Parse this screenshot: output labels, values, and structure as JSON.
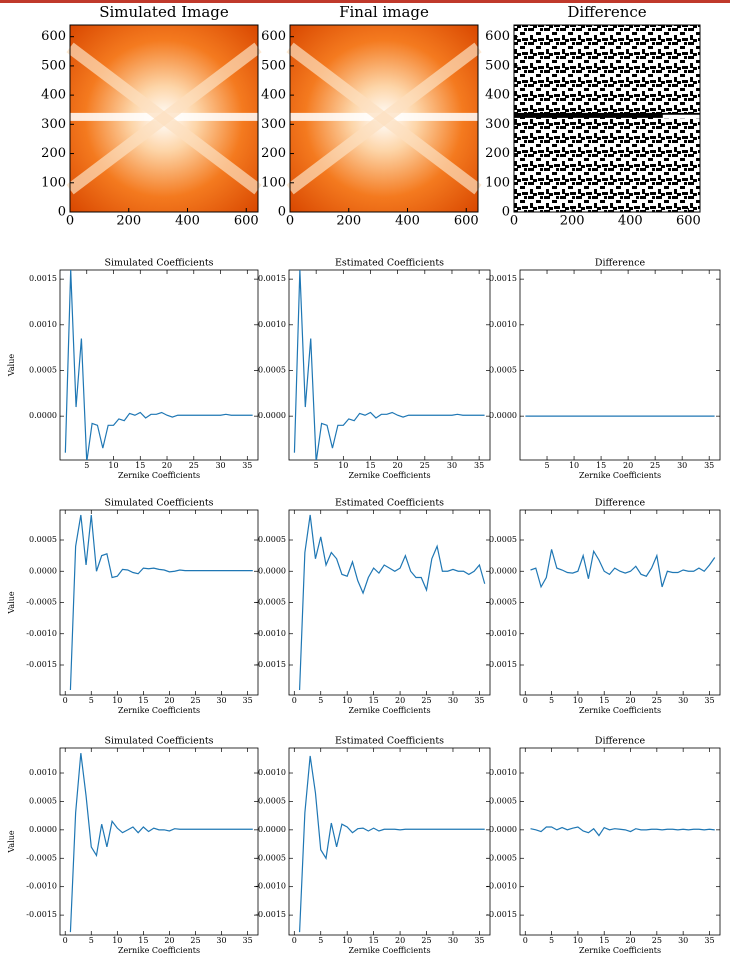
{
  "chart_data": [
    {
      "type": "image",
      "title": "Simulated Image",
      "colormap": "orange",
      "xlim": [
        0,
        640
      ],
      "ylim": [
        0,
        640
      ],
      "xticks": [
        0,
        200,
        400,
        600
      ],
      "yticks": [
        0,
        100,
        200,
        300,
        400,
        500,
        600
      ]
    },
    {
      "type": "image",
      "title": "Final image",
      "colormap": "orange",
      "xlim": [
        0,
        640
      ],
      "ylim": [
        0,
        640
      ],
      "xticks": [
        0,
        200,
        400,
        600
      ],
      "yticks": [
        0,
        100,
        200,
        300,
        400,
        500,
        600
      ]
    },
    {
      "type": "image",
      "title": "Difference",
      "colormap": "binary",
      "xlim": [
        0,
        640
      ],
      "ylim": [
        0,
        640
      ],
      "xticks": [
        0,
        200,
        400,
        600
      ],
      "yticks": [
        0,
        100,
        200,
        300,
        400,
        500,
        600
      ]
    },
    {
      "type": "line",
      "title": "Simulated Coefficients",
      "x_label": "Zernike Coefficients",
      "y_label": "Value",
      "x": [
        1,
        2,
        3,
        4,
        5,
        6,
        7,
        8,
        9,
        10,
        11,
        12,
        13,
        14,
        15,
        16,
        17,
        18,
        19,
        20,
        21,
        22,
        23,
        24,
        25,
        26,
        27,
        28,
        29,
        30,
        31,
        32,
        33,
        34,
        35,
        36
      ],
      "series": [
        {
          "color": "#1f77b4",
          "values": [
            -0.0004,
            0.0016,
            0.0001,
            0.00085,
            -0.0005,
            -8e-05,
            -0.0001,
            -0.00035,
            -0.0001,
            -0.0001,
            -3e-05,
            -5e-05,
            3e-05,
            1e-05,
            4e-05,
            -2e-05,
            2e-05,
            2e-05,
            4e-05,
            1e-05,
            -1e-05,
            1e-05,
            1e-05,
            1e-05,
            1e-05,
            1e-05,
            1e-05,
            1e-05,
            1e-05,
            1e-05,
            2e-05,
            1e-05,
            1e-05,
            1e-05,
            1e-05,
            1e-05
          ]
        }
      ],
      "xlim": [
        0,
        37
      ],
      "ylim": [
        -0.00048,
        0.0016
      ],
      "xticks": [
        5,
        10,
        15,
        20,
        25,
        30,
        35
      ],
      "yticks": [
        {
          "value": 0,
          "label": "0.0000"
        },
        {
          "value": 0.0005,
          "label": "0.0005"
        },
        {
          "value": 0.001,
          "label": "0.0010"
        },
        {
          "value": 0.0015,
          "label": "0.0015"
        }
      ]
    },
    {
      "type": "line",
      "title": "Estimated Coefficients",
      "x_label": "Zernike Coefficients",
      "x": [
        1,
        2,
        3,
        4,
        5,
        6,
        7,
        8,
        9,
        10,
        11,
        12,
        13,
        14,
        15,
        16,
        17,
        18,
        19,
        20,
        21,
        22,
        23,
        24,
        25,
        26,
        27,
        28,
        29,
        30,
        31,
        32,
        33,
        34,
        35,
        36
      ],
      "series": [
        {
          "color": "#1f77b4",
          "values": [
            -0.0004,
            0.0016,
            0.0001,
            0.00085,
            -0.0005,
            -8e-05,
            -0.0001,
            -0.00035,
            -0.0001,
            -0.0001,
            -3e-05,
            -5e-05,
            3e-05,
            1e-05,
            4e-05,
            -2e-05,
            2e-05,
            2e-05,
            4e-05,
            1e-05,
            -1e-05,
            1e-05,
            1e-05,
            1e-05,
            1e-05,
            1e-05,
            1e-05,
            1e-05,
            1e-05,
            1e-05,
            2e-05,
            1e-05,
            1e-05,
            1e-05,
            1e-05,
            1e-05
          ]
        }
      ],
      "xlim": [
        0,
        37
      ],
      "ylim": [
        -0.00048,
        0.0016
      ],
      "xticks": [
        5,
        10,
        15,
        20,
        25,
        30,
        35
      ],
      "yticks": [
        {
          "value": 0,
          "label": "0.0000"
        },
        {
          "value": 0.0005,
          "label": "0.0005"
        },
        {
          "value": 0.001,
          "label": "0.0010"
        },
        {
          "value": 0.0015,
          "label": "0.0015"
        }
      ]
    },
    {
      "type": "line",
      "title": "Difference",
      "x_label": "Zernike Coefficients",
      "x": [
        1,
        2,
        3,
        4,
        5,
        6,
        7,
        8,
        9,
        10,
        11,
        12,
        13,
        14,
        15,
        16,
        17,
        18,
        19,
        20,
        21,
        22,
        23,
        24,
        25,
        26,
        27,
        28,
        29,
        30,
        31,
        32,
        33,
        34,
        35,
        36
      ],
      "series": [
        {
          "color": "#1f77b4",
          "values": [
            0,
            0,
            0,
            0,
            0,
            0,
            0,
            0,
            0,
            0,
            0,
            0,
            0,
            0,
            0,
            0,
            0,
            0,
            0,
            0,
            0,
            0,
            0,
            0,
            0,
            0,
            0,
            0,
            0,
            0,
            0,
            0,
            0,
            0,
            0,
            0
          ]
        }
      ],
      "xlim": [
        0,
        37
      ],
      "ylim": [
        -0.00048,
        0.0016
      ],
      "xticks": [
        5,
        10,
        15,
        20,
        25,
        30,
        35
      ],
      "yticks": [
        {
          "value": 0,
          "label": "0.0000"
        },
        {
          "value": 0.0005,
          "label": "0.0005"
        },
        {
          "value": 0.001,
          "label": "0.0010"
        },
        {
          "value": 0.0015,
          "label": "0.0015"
        }
      ]
    },
    {
      "type": "line",
      "title": "Simulated Coefficients",
      "x_label": "Zernike Coefficients",
      "y_label": "Value",
      "x": [
        1,
        2,
        3,
        4,
        5,
        6,
        7,
        8,
        9,
        10,
        11,
        12,
        13,
        14,
        15,
        16,
        17,
        18,
        19,
        20,
        21,
        22,
        23,
        24,
        25,
        26,
        27,
        28,
        29,
        30,
        31,
        32,
        33,
        34,
        35,
        36
      ],
      "series": [
        {
          "color": "#1f77b4",
          "values": [
            -0.0019,
            0.0004,
            0.0009,
            0.0001,
            0.0009,
            0.0,
            0.00025,
            0.00028,
            -0.0001,
            -8e-05,
            3e-05,
            2e-05,
            -2e-05,
            -4e-05,
            5e-05,
            4e-05,
            5e-05,
            3e-05,
            2e-05,
            -1e-05,
            0.0,
            2e-05,
            1e-05,
            1e-05,
            1e-05,
            1e-05,
            1e-05,
            1e-05,
            1e-05,
            1e-05,
            1e-05,
            1e-05,
            1e-05,
            1e-05,
            1e-05,
            1e-05
          ]
        }
      ],
      "xlim": [
        -1,
        37
      ],
      "ylim": [
        -0.00198,
        0.00098
      ],
      "xticks": [
        0,
        5,
        10,
        15,
        20,
        25,
        30,
        35
      ],
      "yticks": [
        {
          "value": -0.0015,
          "label": "-0.0015"
        },
        {
          "value": -0.001,
          "label": "-0.0010"
        },
        {
          "value": -0.0005,
          "label": "-0.0005"
        },
        {
          "value": 0,
          "label": "0.0000"
        },
        {
          "value": 0.0005,
          "label": "0.0005"
        }
      ]
    },
    {
      "type": "line",
      "title": "Estimated Coefficients",
      "x_label": "Zernike Coefficients",
      "x": [
        1,
        2,
        3,
        4,
        5,
        6,
        7,
        8,
        9,
        10,
        11,
        12,
        13,
        14,
        15,
        16,
        17,
        18,
        19,
        20,
        21,
        22,
        23,
        24,
        25,
        26,
        27,
        28,
        29,
        30,
        31,
        32,
        33,
        34,
        35,
        36
      ],
      "series": [
        {
          "color": "#1f77b4",
          "values": [
            -0.0019,
            0.0003,
            0.0009,
            0.0002,
            0.00055,
            0.0001,
            0.0003,
            0.0002,
            -5e-05,
            -8e-05,
            0.00015,
            -0.00015,
            -0.00035,
            -0.0001,
            5e-05,
            -3e-05,
            0.0001,
            5e-05,
            0.0,
            5e-05,
            0.00025,
            0.0,
            -0.0001,
            -0.0001,
            -0.0003,
            0.0002,
            0.0004,
            0.0,
            0.0,
            3e-05,
            0.0,
            0.0,
            -5e-05,
            0.0,
            0.0001,
            -0.0002
          ]
        }
      ],
      "xlim": [
        -1,
        37
      ],
      "ylim": [
        -0.00198,
        0.00098
      ],
      "xticks": [
        0,
        5,
        10,
        15,
        20,
        25,
        30,
        35
      ],
      "yticks": [
        {
          "value": -0.0015,
          "label": "-0.0015"
        },
        {
          "value": -0.001,
          "label": "-0.0010"
        },
        {
          "value": -0.0005,
          "label": "-0.0005"
        },
        {
          "value": 0,
          "label": "0.0000"
        },
        {
          "value": 0.0005,
          "label": "0.0005"
        }
      ]
    },
    {
      "type": "line",
      "title": "Difference",
      "x_label": "Zernike Coefficients",
      "x": [
        1,
        2,
        3,
        4,
        5,
        6,
        7,
        8,
        9,
        10,
        11,
        12,
        13,
        14,
        15,
        16,
        17,
        18,
        19,
        20,
        21,
        22,
        23,
        24,
        25,
        26,
        27,
        28,
        29,
        30,
        31,
        32,
        33,
        34,
        35,
        36
      ],
      "series": [
        {
          "color": "#1f77b4",
          "values": [
            2e-05,
            5e-05,
            -0.00025,
            -0.0001,
            0.00035,
            5e-05,
            2e-05,
            -2e-05,
            -3e-05,
            0.0,
            0.00025,
            -0.00012,
            0.00032,
            0.00018,
            0.0,
            -5e-05,
            5e-05,
            0.0,
            -3e-05,
            0.0,
            8e-05,
            -5e-05,
            -8e-05,
            5e-05,
            0.00025,
            -0.00025,
            0.0,
            -2e-05,
            -2e-05,
            2e-05,
            0.0,
            0.0,
            5e-05,
            0.0,
            0.0001,
            0.00022
          ]
        }
      ],
      "xlim": [
        -1,
        37
      ],
      "ylim": [
        -0.00198,
        0.00098
      ],
      "xticks": [
        0,
        5,
        10,
        15,
        20,
        25,
        30,
        35
      ],
      "yticks": [
        {
          "value": -0.0015,
          "label": "-0.0015"
        },
        {
          "value": -0.001,
          "label": "-0.0010"
        },
        {
          "value": -0.0005,
          "label": "-0.0005"
        },
        {
          "value": 0,
          "label": "0.0000"
        },
        {
          "value": 0.0005,
          "label": "0.0005"
        }
      ]
    },
    {
      "type": "line",
      "title": "Simulated Coefficients",
      "x_label": "Zernike Coefficients",
      "y_label": "Value",
      "x": [
        1,
        2,
        3,
        4,
        5,
        6,
        7,
        8,
        9,
        10,
        11,
        12,
        13,
        14,
        15,
        16,
        17,
        18,
        19,
        20,
        21,
        22,
        23,
        24,
        25,
        26,
        27,
        28,
        29,
        30,
        31,
        32,
        33,
        34,
        35,
        36
      ],
      "series": [
        {
          "color": "#1f77b4",
          "values": [
            -0.0018,
            0.0003,
            0.00135,
            0.0006,
            -0.0003,
            -0.00045,
            0.0001,
            -0.0003,
            0.00015,
            3e-05,
            -5e-05,
            0.0,
            5e-05,
            -5e-05,
            5e-05,
            -3e-05,
            3e-05,
            0.0,
            0.0,
            -2e-05,
            2e-05,
            1e-05,
            1e-05,
            1e-05,
            1e-05,
            1e-05,
            1e-05,
            1e-05,
            1e-05,
            1e-05,
            1e-05,
            1e-05,
            1e-05,
            1e-05,
            1e-05,
            1e-05
          ]
        }
      ],
      "xlim": [
        -1,
        37
      ],
      "ylim": [
        -0.00185,
        0.00144
      ],
      "xticks": [
        0,
        5,
        10,
        15,
        20,
        25,
        30,
        35
      ],
      "yticks": [
        {
          "value": -0.0015,
          "label": "-0.0015"
        },
        {
          "value": -0.001,
          "label": "-0.0010"
        },
        {
          "value": -0.0005,
          "label": "-0.0005"
        },
        {
          "value": 0,
          "label": "0.0000"
        },
        {
          "value": 0.0005,
          "label": "0.0005"
        },
        {
          "value": 0.001,
          "label": "0.0010"
        }
      ]
    },
    {
      "type": "line",
      "title": "Estimated Coefficients",
      "x_label": "Zernike Coefficients",
      "x": [
        1,
        2,
        3,
        4,
        5,
        6,
        7,
        8,
        9,
        10,
        11,
        12,
        13,
        14,
        15,
        16,
        17,
        18,
        19,
        20,
        21,
        22,
        23,
        24,
        25,
        26,
        27,
        28,
        29,
        30,
        31,
        32,
        33,
        34,
        35,
        36
      ],
      "series": [
        {
          "color": "#1f77b4",
          "values": [
            -0.0018,
            0.0003,
            0.0013,
            0.00065,
            -0.00035,
            -0.0005,
            0.00012,
            -0.0003,
            0.0001,
            5e-05,
            -5e-05,
            2e-05,
            3e-05,
            -2e-05,
            3e-05,
            -2e-05,
            1e-05,
            1e-05,
            1e-05,
            0.0,
            1e-05,
            1e-05,
            1e-05,
            1e-05,
            1e-05,
            1e-05,
            1e-05,
            1e-05,
            1e-05,
            1e-05,
            1e-05,
            1e-05,
            1e-05,
            1e-05,
            1e-05,
            1e-05
          ]
        }
      ],
      "xlim": [
        -1,
        37
      ],
      "ylim": [
        -0.00185,
        0.00144
      ],
      "xticks": [
        0,
        5,
        10,
        15,
        20,
        25,
        30,
        35
      ],
      "yticks": [
        {
          "value": -0.0015,
          "label": "-0.0015"
        },
        {
          "value": -0.001,
          "label": "-0.0010"
        },
        {
          "value": -0.0005,
          "label": "-0.0005"
        },
        {
          "value": 0,
          "label": "0.0000"
        },
        {
          "value": 0.0005,
          "label": "0.0005"
        },
        {
          "value": 0.001,
          "label": "0.0010"
        }
      ]
    },
    {
      "type": "line",
      "title": "Difference",
      "x_label": "Zernike Coefficients",
      "x": [
        1,
        2,
        3,
        4,
        5,
        6,
        7,
        8,
        9,
        10,
        11,
        12,
        13,
        14,
        15,
        16,
        17,
        18,
        19,
        20,
        21,
        22,
        23,
        24,
        25,
        26,
        27,
        28,
        29,
        30,
        31,
        32,
        33,
        34,
        35,
        36
      ],
      "series": [
        {
          "color": "#1f77b4",
          "values": [
            2e-05,
            0.0,
            -3e-05,
            5e-05,
            5e-05,
            0.0,
            4e-05,
            0.0,
            3e-05,
            5e-05,
            -2e-05,
            -5e-05,
            2e-05,
            -0.0001,
            4e-05,
            0.0,
            2e-05,
            1e-05,
            0.0,
            -3e-05,
            2e-05,
            0.0,
            0.0,
            1e-05,
            1e-05,
            0.0,
            1e-05,
            1e-05,
            0.0,
            1e-05,
            0.0,
            1e-05,
            1e-05,
            0.0,
            1e-05,
            0.0
          ]
        }
      ],
      "xlim": [
        -1,
        37
      ],
      "ylim": [
        -0.00185,
        0.00144
      ],
      "xticks": [
        0,
        5,
        10,
        15,
        20,
        25,
        30,
        35
      ],
      "yticks": [
        {
          "value": -0.0015,
          "label": "-0.0015"
        },
        {
          "value": -0.001,
          "label": "-0.0010"
        },
        {
          "value": -0.0005,
          "label": "-0.0005"
        },
        {
          "value": 0,
          "label": "0.0000"
        },
        {
          "value": 0.0005,
          "label": "0.0005"
        },
        {
          "value": 0.001,
          "label": "0.0010"
        }
      ]
    }
  ]
}
